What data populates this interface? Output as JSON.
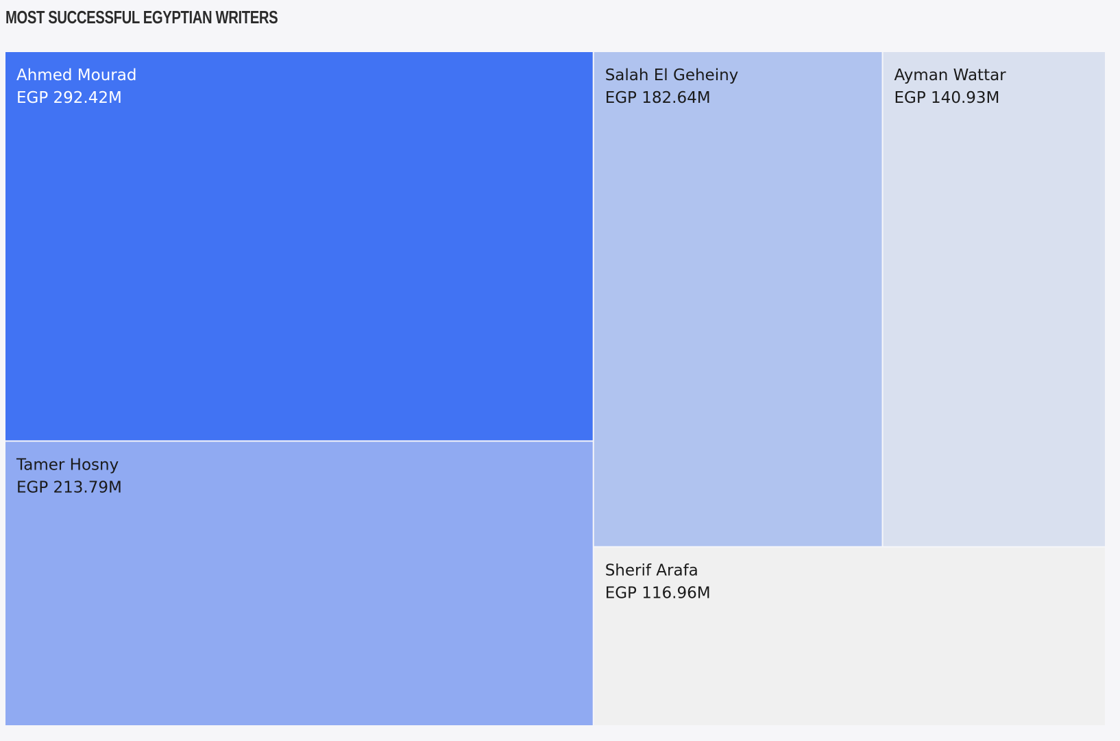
{
  "chart_data": {
    "type": "treemap",
    "title": "MOST SUCCESSFUL EGYPTIAN WRITERS",
    "items": [
      {
        "name": "Ahmed Mourad",
        "value": 292.42,
        "label": "EGP 292.42M",
        "color": "#4173f3",
        "text_color": "#ffffff"
      },
      {
        "name": "Tamer Hosny",
        "value": 213.79,
        "label": "EGP 213.79M",
        "color": "#90aaf2",
        "text_color": "#1a1a1a"
      },
      {
        "name": "Salah El Geheiny",
        "value": 182.64,
        "label": "EGP 182.64M",
        "color": "#b0c3ef",
        "text_color": "#1a1a1a"
      },
      {
        "name": "Ayman Wattar",
        "value": 140.93,
        "label": "EGP 140.93M",
        "color": "#d9e0ef",
        "text_color": "#1a1a1a"
      },
      {
        "name": "Sherif Arafa",
        "value": 116.96,
        "label": "EGP 116.96M",
        "color": "#f0f0f0",
        "text_color": "#1a1a1a"
      }
    ]
  }
}
